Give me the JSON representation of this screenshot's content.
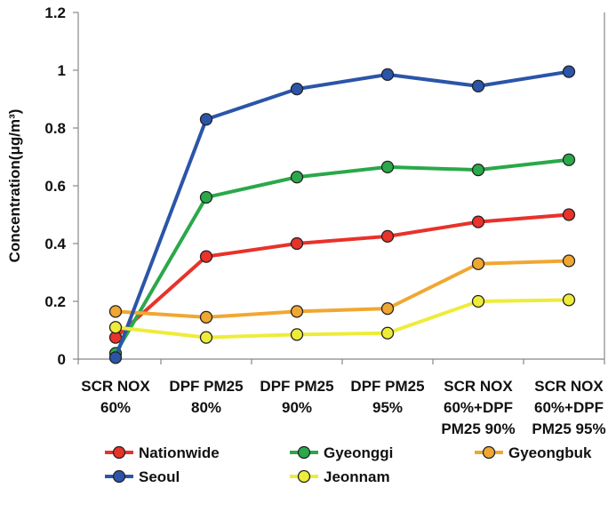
{
  "chart_data": {
    "type": "line",
    "title": "",
    "xlabel": "",
    "ylabel": "Concentration(μg/m³)",
    "ylim": [
      0,
      1.2
    ],
    "yticks": [
      "0",
      "0.2",
      "0.4",
      "0.6",
      "0.8",
      "1",
      "1.2"
    ],
    "ytick_values": [
      0,
      0.2,
      0.4,
      0.6,
      0.8,
      1.0,
      1.2
    ],
    "grid": false,
    "legend_position": "bottom",
    "categories": [
      [
        "SCR NOX",
        "60%"
      ],
      [
        "DPF PM25",
        "80%"
      ],
      [
        "DPF PM25",
        "90%"
      ],
      [
        "DPF PM25",
        "95%"
      ],
      [
        "SCR NOX",
        "60%+DPF",
        "PM25 90%"
      ],
      [
        "SCR NOX",
        "60%+DPF",
        "PM25 95%"
      ]
    ],
    "series": [
      {
        "name": "Nationwide",
        "color": "#e8322a",
        "values": [
          0.075,
          0.355,
          0.4,
          0.425,
          0.475,
          0.5
        ]
      },
      {
        "name": "Gyeonggi",
        "color": "#2aa84a",
        "values": [
          0.02,
          0.56,
          0.63,
          0.665,
          0.655,
          0.69
        ]
      },
      {
        "name": "Gyeongbuk",
        "color": "#f0a732",
        "values": [
          0.165,
          0.145,
          0.165,
          0.175,
          0.33,
          0.34
        ]
      },
      {
        "name": "Seoul",
        "color": "#2b55a8",
        "values": [
          0.005,
          0.83,
          0.935,
          0.985,
          0.945,
          0.995
        ]
      },
      {
        "name": "Jeonnam",
        "color": "#eeec3a",
        "values": [
          0.11,
          0.075,
          0.085,
          0.09,
          0.2,
          0.205
        ]
      }
    ]
  }
}
